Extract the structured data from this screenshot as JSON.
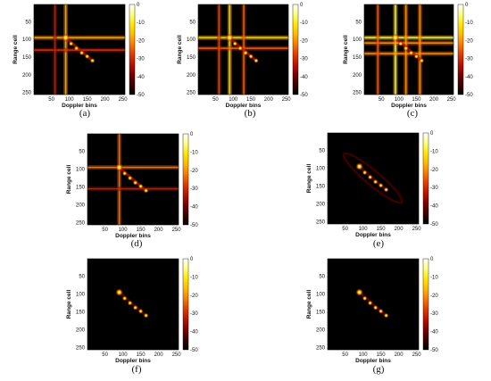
{
  "colors": {
    "cmap": [
      "#000000",
      "#3a0000",
      "#7a0000",
      "#b81200",
      "#e03a00",
      "#f57a00",
      "#ffb800",
      "#ffe600",
      "#ffff80",
      "#ffffff"
    ],
    "background": "#ffffff"
  },
  "chart_data": [
    {
      "type": "heatmap",
      "caption": "(a)",
      "xlabel": "Doppler bins",
      "ylabel": "Range cell",
      "xticks": [
        50,
        100,
        150,
        200,
        250
      ],
      "yticks": [
        50,
        100,
        150,
        200,
        250
      ],
      "xlim": [
        1,
        256
      ],
      "ylim": [
        1,
        256
      ],
      "colorbar": {
        "ticks": [
          0,
          -10,
          -20,
          -30,
          -40,
          -50
        ],
        "range": [
          -50,
          0
        ]
      },
      "targets": [
        [
          90,
          95
        ],
        [
          105,
          112
        ],
        [
          120,
          125
        ],
        [
          135,
          138
        ],
        [
          150,
          148
        ],
        [
          165,
          160
        ]
      ],
      "streaks": [
        {
          "axis": "row",
          "at": 95,
          "level": 0.55
        },
        {
          "axis": "col",
          "at": 90,
          "level": 0.55
        },
        {
          "axis": "row",
          "at": 130,
          "level": 0.3
        },
        {
          "axis": "col",
          "at": 60,
          "level": 0.25
        }
      ]
    },
    {
      "type": "heatmap",
      "caption": "(b)",
      "xlabel": "Doppler bins",
      "ylabel": "Range cell",
      "xticks": [
        50,
        100,
        150,
        200,
        250
      ],
      "yticks": [
        50,
        100,
        150,
        200,
        250
      ],
      "xlim": [
        1,
        256
      ],
      "ylim": [
        1,
        256
      ],
      "colorbar": {
        "ticks": [
          0,
          -10,
          -20,
          -30,
          -40,
          -50
        ],
        "range": [
          -50,
          0
        ]
      },
      "targets": [
        [
          90,
          95
        ],
        [
          105,
          112
        ],
        [
          120,
          125
        ],
        [
          135,
          138
        ],
        [
          150,
          148
        ],
        [
          165,
          160
        ]
      ],
      "streaks": [
        {
          "axis": "row",
          "at": 95,
          "level": 0.65
        },
        {
          "axis": "col",
          "at": 90,
          "level": 0.65
        },
        {
          "axis": "row",
          "at": 125,
          "level": 0.4
        },
        {
          "axis": "col",
          "at": 130,
          "level": 0.4
        },
        {
          "axis": "col",
          "at": 60,
          "level": 0.35
        }
      ]
    },
    {
      "type": "heatmap",
      "caption": "(c)",
      "xlabel": "Doppler bins",
      "ylabel": "Range cell",
      "xticks": [
        50,
        100,
        150,
        200,
        250
      ],
      "yticks": [
        50,
        100,
        150,
        200,
        250
      ],
      "xlim": [
        1,
        256
      ],
      "ylim": [
        1,
        256
      ],
      "colorbar": {
        "ticks": [
          0,
          -10,
          -20,
          -30,
          -40,
          -50
        ],
        "range": [
          -50,
          0
        ]
      },
      "targets": [
        [
          90,
          95
        ],
        [
          105,
          112
        ],
        [
          120,
          125
        ],
        [
          135,
          138
        ],
        [
          150,
          148
        ],
        [
          165,
          160
        ]
      ],
      "streaks": [
        {
          "axis": "row",
          "at": 95,
          "level": 0.75
        },
        {
          "axis": "col",
          "at": 90,
          "level": 0.75
        },
        {
          "axis": "row",
          "at": 110,
          "level": 0.5
        },
        {
          "axis": "row",
          "at": 140,
          "level": 0.5
        },
        {
          "axis": "col",
          "at": 120,
          "level": 0.5
        },
        {
          "axis": "col",
          "at": 160,
          "level": 0.5
        },
        {
          "axis": "col",
          "at": 40,
          "level": 0.4
        }
      ]
    },
    {
      "type": "heatmap",
      "caption": "(d)",
      "xlabel": "Doppler bins",
      "ylabel": "Range cell",
      "xticks": [
        50,
        100,
        150,
        200,
        250
      ],
      "yticks": [
        50,
        100,
        150,
        200,
        250
      ],
      "xlim": [
        1,
        256
      ],
      "ylim": [
        1,
        256
      ],
      "colorbar": {
        "ticks": [
          0,
          -10,
          -20,
          -30,
          -40,
          -50
        ],
        "range": [
          -50,
          0
        ]
      },
      "targets": [
        [
          90,
          95
        ],
        [
          105,
          112
        ],
        [
          120,
          125
        ],
        [
          135,
          138
        ],
        [
          150,
          148
        ],
        [
          165,
          160
        ]
      ],
      "streaks": [
        {
          "axis": "row",
          "at": 95,
          "level": 0.45
        },
        {
          "axis": "col",
          "at": 90,
          "level": 0.45
        },
        {
          "axis": "row",
          "at": 155,
          "level": 0.25
        }
      ]
    },
    {
      "type": "heatmap",
      "caption": "(e)",
      "xlabel": "Doppler bins",
      "ylabel": "Range cell",
      "xticks": [
        50,
        100,
        150,
        200,
        250
      ],
      "yticks": [
        50,
        100,
        150,
        200,
        250
      ],
      "xlim": [
        1,
        256
      ],
      "ylim": [
        1,
        256
      ],
      "colorbar": {
        "ticks": [
          0,
          -10,
          -20,
          -30,
          -40,
          -50
        ],
        "range": [
          -50,
          0
        ]
      },
      "targets": [
        [
          90,
          95
        ],
        [
          105,
          112
        ],
        [
          120,
          125
        ],
        [
          135,
          138
        ],
        [
          150,
          148
        ],
        [
          165,
          160
        ]
      ],
      "streaks": [],
      "halo": true
    },
    {
      "type": "heatmap",
      "caption": "(f)",
      "xlabel": "Doppler bins",
      "ylabel": "Range cell",
      "xticks": [
        50,
        100,
        150,
        200,
        250
      ],
      "yticks": [
        50,
        100,
        150,
        200,
        250
      ],
      "xlim": [
        1,
        256
      ],
      "ylim": [
        1,
        256
      ],
      "colorbar": {
        "ticks": [
          0,
          -10,
          -20,
          -30,
          -40,
          -50
        ],
        "range": [
          -50,
          0
        ]
      },
      "targets": [
        [
          90,
          95
        ],
        [
          105,
          112
        ],
        [
          120,
          125
        ],
        [
          135,
          138
        ],
        [
          150,
          148
        ],
        [
          165,
          160
        ]
      ],
      "streaks": []
    },
    {
      "type": "heatmap",
      "caption": "(g)",
      "xlabel": "Doppler bins",
      "ylabel": "Range cell",
      "xticks": [
        50,
        100,
        150,
        200,
        250
      ],
      "yticks": [
        50,
        100,
        150,
        200,
        250
      ],
      "xlim": [
        1,
        256
      ],
      "ylim": [
        1,
        256
      ],
      "colorbar": {
        "ticks": [
          0,
          -10,
          -20,
          -30,
          -40,
          -50
        ],
        "range": [
          -50,
          0
        ]
      },
      "targets": [
        [
          90,
          95
        ],
        [
          105,
          112
        ],
        [
          120,
          125
        ],
        [
          135,
          138
        ],
        [
          150,
          148
        ],
        [
          165,
          160
        ]
      ],
      "streaks": []
    }
  ]
}
